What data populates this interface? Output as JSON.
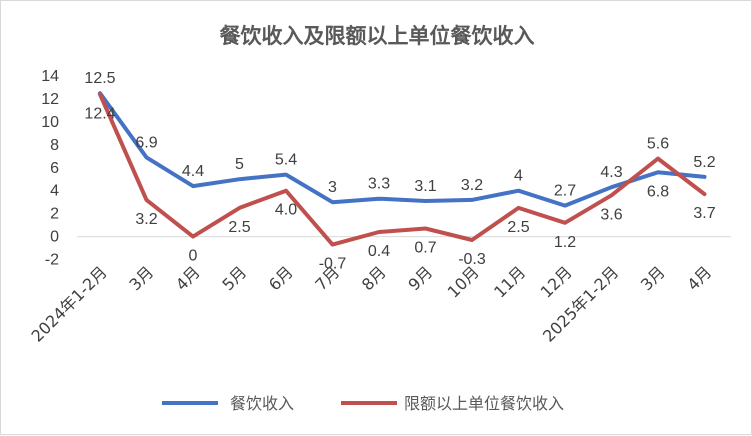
{
  "chart_data": {
    "type": "line",
    "title": "餐饮收入及限额以上单位餐饮收入",
    "categories": [
      "2024年1-2月",
      "3月",
      "4月",
      "5月",
      "6月",
      "7月",
      "8月",
      "9月",
      "10月",
      "11月",
      "12月",
      "2025年1-2月",
      "3月",
      "4月"
    ],
    "series": [
      {
        "name": "餐饮收入",
        "color": "#4472C4",
        "values": [
          12.5,
          6.9,
          4.4,
          5,
          5.4,
          3,
          3.3,
          3.1,
          3.2,
          4,
          2.7,
          4.3,
          5.6,
          5.2
        ],
        "labels": [
          "12.5",
          "6.9",
          "4.4",
          "5",
          "5.4",
          "3",
          "3.3",
          "3.1",
          "3.2",
          "4",
          "2.7",
          "4.3",
          "5.6",
          "5.2"
        ]
      },
      {
        "name": "限额以上单位餐饮收入",
        "color": "#C0504D",
        "values": [
          12.4,
          3.2,
          0,
          2.5,
          4.0,
          -0.7,
          0.4,
          0.7,
          -0.3,
          2.5,
          1.2,
          3.6,
          6.8,
          3.7
        ],
        "labels": [
          "12.4",
          "3.2",
          "0",
          "2.5",
          "4.0",
          "-0.7",
          "0.4",
          "0.7",
          "-0.3",
          "2.5",
          "1.2",
          "3.6",
          "6.8",
          "3.7"
        ]
      }
    ],
    "yticks": [
      "-2",
      "0",
      "2",
      "4",
      "6",
      "8",
      "10",
      "12",
      "14"
    ],
    "ylim": [
      -2,
      14
    ],
    "grid": false,
    "legend_position": "bottom"
  }
}
